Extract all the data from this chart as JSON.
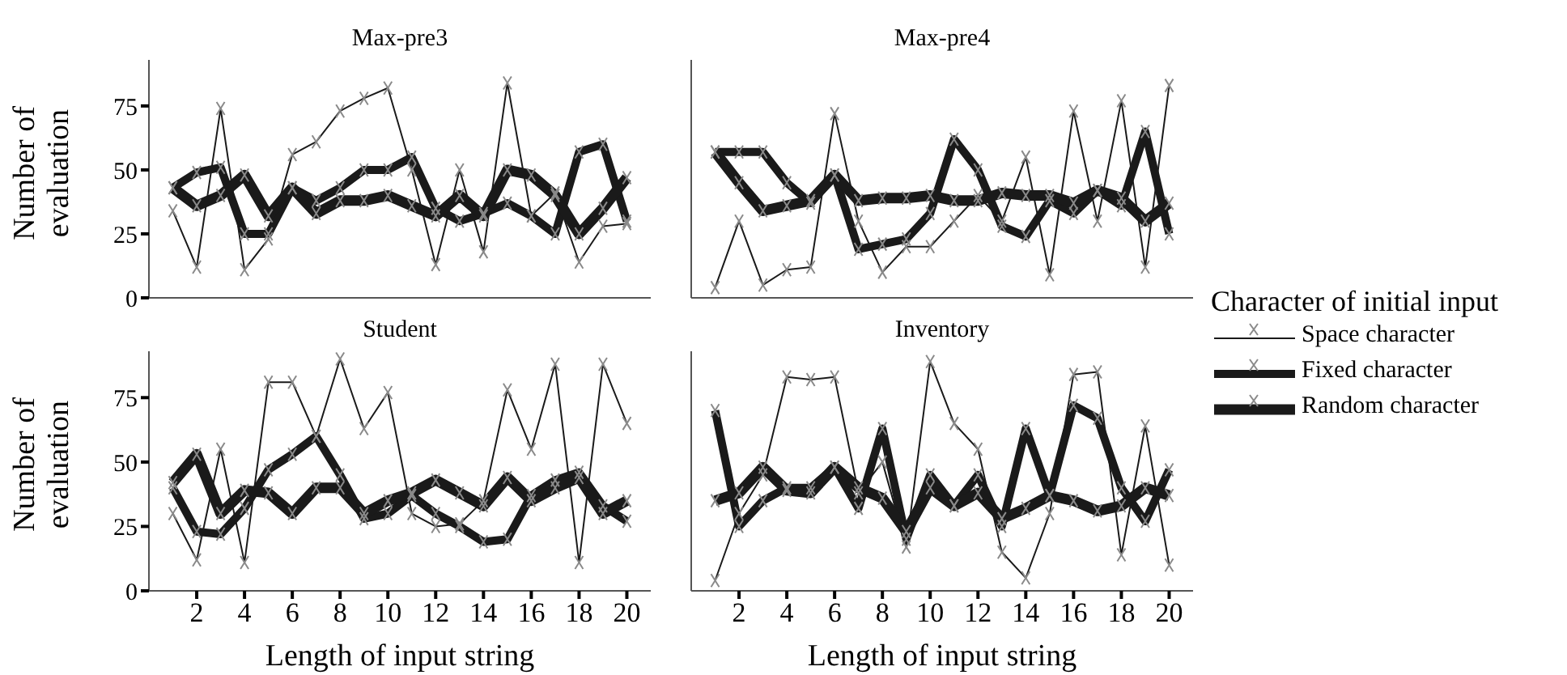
{
  "chart_data": [
    {
      "type": "line",
      "title": "Max-pre3",
      "ylabel": "Number of evaluation",
      "tick_labels": "y",
      "marker": "cross",
      "line_style": "solid",
      "legend": "right",
      "legend_title": "Character of initial input",
      "x": [
        1,
        2,
        3,
        4,
        5,
        6,
        7,
        8,
        9,
        10,
        11,
        12,
        13,
        14,
        15,
        16,
        17,
        18,
        19,
        20
      ],
      "xlim": [
        0,
        21
      ],
      "xticks": [
        2,
        4,
        6,
        8,
        10,
        12,
        14,
        16,
        18,
        20
      ],
      "ylim": [
        0,
        93
      ],
      "yticks": [
        0,
        25,
        50,
        75
      ],
      "series": [
        {
          "name": "Space character",
          "color": "#1a1a1a",
          "values": [
            34,
            12,
            74,
            11,
            23,
            56,
            61,
            73,
            78,
            82,
            50,
            13,
            50,
            18,
            84,
            32,
            41,
            14,
            28,
            29
          ]
        },
        {
          "name": "Fixed character",
          "color": "#1a1a1a",
          "values": [
            43,
            49,
            51,
            25,
            25,
            43,
            38,
            43,
            50,
            50,
            55,
            35,
            30,
            33,
            37,
            32,
            25,
            57,
            60,
            30
          ]
        },
        {
          "name": "Random character",
          "color": "#1a1a1a",
          "values": [
            43,
            36,
            40,
            48,
            32,
            43,
            33,
            38,
            38,
            40,
            36,
            32,
            40,
            32,
            50,
            48,
            40,
            25,
            35,
            47
          ]
        }
      ]
    },
    {
      "type": "line",
      "title": "Max-pre4",
      "tick_labels": false,
      "marker": "cross",
      "line_style": "solid",
      "x": [
        1,
        2,
        3,
        4,
        5,
        6,
        7,
        8,
        9,
        10,
        11,
        12,
        13,
        14,
        15,
        16,
        17,
        18,
        19,
        20
      ],
      "xlim": [
        0,
        21
      ],
      "xticks": [
        2,
        4,
        6,
        8,
        10,
        12,
        14,
        16,
        18,
        20
      ],
      "ylim": [
        0,
        93
      ],
      "yticks": [
        0,
        25,
        50,
        75
      ],
      "series": [
        {
          "color": "#1a1a1a",
          "values": [
            4,
            30,
            5,
            11,
            12,
            72,
            30,
            10,
            20,
            20,
            30,
            40,
            30,
            55,
            9,
            73,
            30,
            77,
            12,
            83
          ]
        },
        {
          "color": "#1a1a1a",
          "values": [
            57,
            57,
            57,
            45,
            37,
            48,
            19,
            21,
            23,
            33,
            62,
            50,
            28,
            24,
            38,
            33,
            42,
            36,
            65,
            25
          ]
        },
        {
          "color": "#1a1a1a",
          "values": [
            57,
            45,
            34,
            36,
            38,
            48,
            38,
            39,
            39,
            40,
            38,
            38,
            41,
            40,
            40,
            37,
            42,
            39,
            30,
            37
          ]
        }
      ]
    },
    {
      "type": "line",
      "title": "Student",
      "ylabel": "Number of evaluation",
      "xlabel": "Length of input string",
      "marker": "cross",
      "line_style": "solid",
      "x": [
        1,
        2,
        3,
        4,
        5,
        6,
        7,
        8,
        9,
        10,
        11,
        12,
        13,
        14,
        15,
        16,
        17,
        18,
        19,
        20
      ],
      "xlim": [
        0,
        21
      ],
      "xticks": [
        2,
        4,
        6,
        8,
        10,
        12,
        14,
        16,
        18,
        20
      ],
      "ylim": [
        0,
        93
      ],
      "yticks": [
        0,
        25,
        50,
        75
      ],
      "series": [
        {
          "color": "#1a1a1a",
          "values": [
            30,
            12,
            55,
            11,
            81,
            81,
            60,
            90,
            63,
            77,
            30,
            25,
            26,
            35,
            78,
            55,
            88,
            11,
            88,
            65
          ]
        },
        {
          "color": "#1a1a1a",
          "values": [
            40,
            23,
            22,
            32,
            47,
            53,
            60,
            45,
            28,
            30,
            37,
            30,
            25,
            19,
            20,
            37,
            43,
            46,
            33,
            27
          ]
        },
        {
          "color": "#1a1a1a",
          "values": [
            42,
            53,
            30,
            39,
            38,
            30,
            40,
            40,
            30,
            35,
            38,
            43,
            38,
            33,
            44,
            35,
            40,
            44,
            30,
            35
          ]
        }
      ]
    },
    {
      "type": "line",
      "title": "Inventory",
      "xlabel": "Length of input string",
      "tick_labels": "x",
      "marker": "cross",
      "line_style": "solid",
      "x": [
        1,
        2,
        3,
        4,
        5,
        6,
        7,
        8,
        9,
        10,
        11,
        12,
        13,
        14,
        15,
        16,
        17,
        18,
        19,
        20
      ],
      "xlim": [
        0,
        21
      ],
      "xticks": [
        2,
        4,
        6,
        8,
        10,
        12,
        14,
        16,
        18,
        20
      ],
      "ylim": [
        0,
        93
      ],
      "yticks": [
        0,
        25,
        50,
        75
      ],
      "series": [
        {
          "color": "#1a1a1a",
          "values": [
            4,
            30,
            45,
            83,
            82,
            83,
            38,
            50,
            17,
            89,
            65,
            55,
            15,
            5,
            30,
            84,
            85,
            14,
            64,
            10
          ]
        },
        {
          "color": "#1a1a1a",
          "values": [
            70,
            25,
            35,
            40,
            40,
            48,
            32,
            63,
            20,
            45,
            33,
            45,
            25,
            63,
            37,
            72,
            67,
            40,
            27,
            47
          ]
        },
        {
          "color": "#1a1a1a",
          "values": [
            35,
            38,
            48,
            39,
            38,
            48,
            40,
            36,
            23,
            40,
            33,
            38,
            28,
            32,
            37,
            35,
            31,
            33,
            40,
            37
          ]
        }
      ]
    }
  ]
}
